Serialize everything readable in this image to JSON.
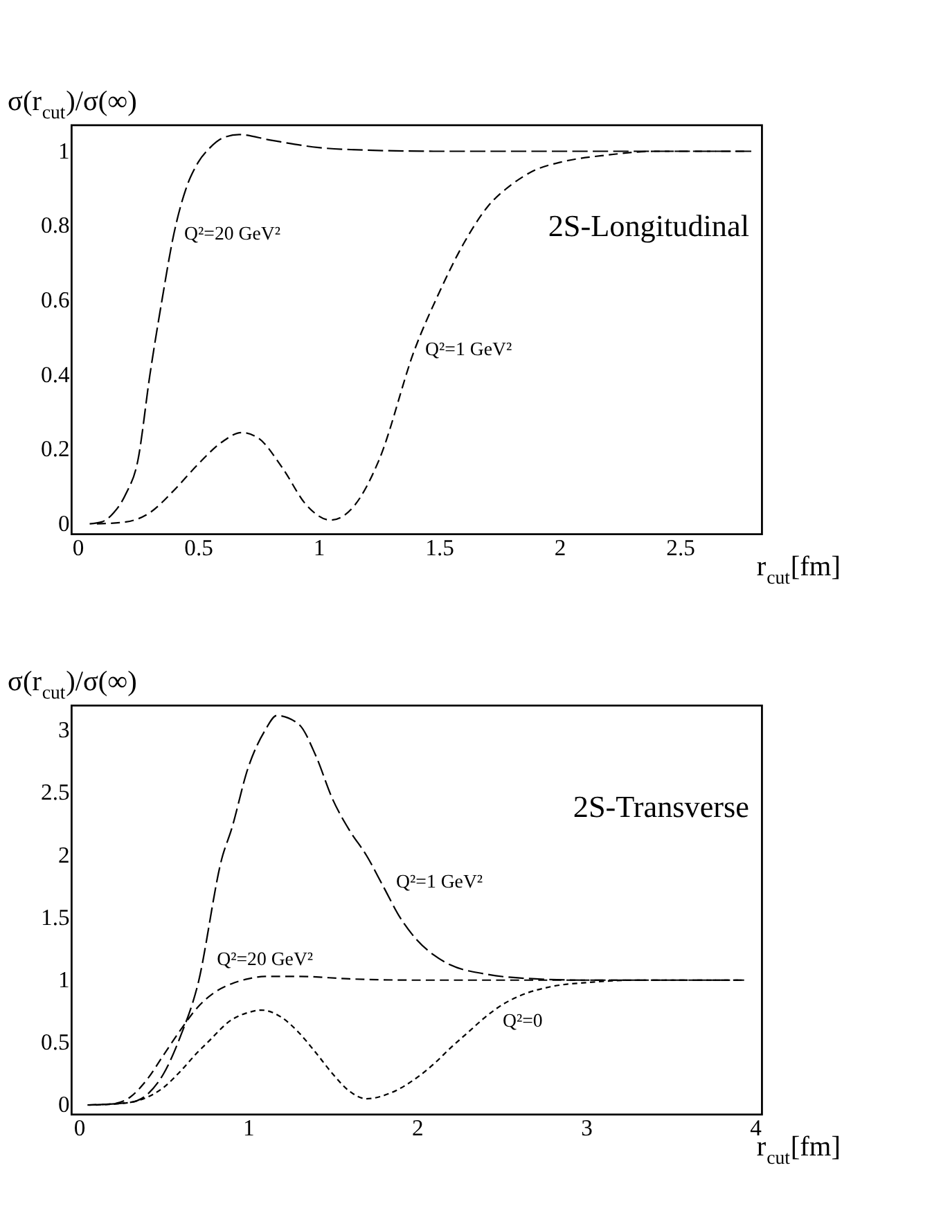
{
  "chart_data": [
    {
      "type": "line",
      "ylabel": "σ(r$_{cut}$)/σ(∞)",
      "xlabel": "r$_{cut}$[fm]",
      "annotations": [
        "2S-Longitudinal"
      ],
      "xlim": [
        -0.025,
        2.84
      ],
      "ylim": [
        -0.028,
        1.07
      ],
      "xticks": [
        0,
        0.5,
        1,
        1.5,
        2,
        2.5
      ],
      "yticks": [
        0,
        0.2,
        0.4,
        0.6,
        0.8,
        1
      ],
      "grid": false,
      "line_style": "dashed",
      "marker": "none",
      "series": [
        {
          "name": "Q²=20 GeV²",
          "color": "#000000",
          "x": [
            0.05,
            0.1,
            0.15,
            0.2,
            0.25,
            0.3,
            0.35,
            0.4,
            0.45,
            0.5,
            0.55,
            0.6,
            0.67,
            0.8,
            1.0,
            1.2,
            1.5,
            2.0,
            2.8
          ],
          "values": [
            0,
            0.005,
            0.03,
            0.08,
            0.17,
            0.4,
            0.6,
            0.78,
            0.9,
            0.97,
            1.01,
            1.035,
            1.045,
            1.03,
            1.01,
            1.003,
            1.0,
            1.0,
            1.0
          ]
        },
        {
          "name": "Q²=1 GeV²",
          "color": "#000000",
          "x": [
            0.08,
            0.2,
            0.3,
            0.4,
            0.5,
            0.6,
            0.68,
            0.75,
            0.85,
            0.95,
            1.05,
            1.15,
            1.25,
            1.4,
            1.5,
            1.6,
            1.7,
            1.8,
            1.9,
            2.0,
            2.2,
            2.4,
            2.78
          ],
          "values": [
            0,
            0.005,
            0.03,
            0.09,
            0.16,
            0.22,
            0.245,
            0.23,
            0.15,
            0.05,
            0.01,
            0.05,
            0.17,
            0.47,
            0.62,
            0.75,
            0.85,
            0.91,
            0.95,
            0.97,
            0.99,
            1.0,
            1.0
          ]
        }
      ]
    },
    {
      "type": "line",
      "ylabel": "σ(r$_{cut}$)/σ(∞)",
      "xlabel": "r$_{cut}$[fm]",
      "annotations": [
        "2S-Transverse"
      ],
      "xlim": [
        -0.044,
        4.04
      ],
      "ylim": [
        -0.077,
        3.2
      ],
      "xticks": [
        0,
        1,
        2,
        3,
        4
      ],
      "yticks": [
        0,
        0.5,
        1,
        1.5,
        2,
        2.5,
        3
      ],
      "grid": false,
      "line_style": "dashed",
      "marker": "none",
      "series": [
        {
          "name": "Q²=1 GeV²",
          "color": "#000000",
          "x": [
            0.06,
            0.3,
            0.4,
            0.5,
            0.6,
            0.7,
            0.85,
            0.9,
            1.0,
            1.1,
            1.17,
            1.3,
            1.4,
            1.5,
            1.6,
            1.7,
            1.8,
            1.9,
            2.0,
            2.1,
            2.2,
            2.4,
            2.7,
            3.0,
            3.92
          ],
          "values": [
            0,
            0.02,
            0.08,
            0.25,
            0.55,
            0.95,
            2.0,
            2.2,
            2.7,
            3.0,
            3.12,
            3.05,
            2.8,
            2.45,
            2.2,
            2.0,
            1.75,
            1.5,
            1.32,
            1.2,
            1.12,
            1.05,
            1.01,
            1.0,
            1.0
          ]
        },
        {
          "name": "Q²=20 GeV²",
          "color": "#000000",
          "x": [
            0.05,
            0.2,
            0.3,
            0.4,
            0.5,
            0.6,
            0.7,
            0.8,
            0.9,
            1.0,
            1.1,
            1.3,
            1.6,
            2.0,
            3.95
          ],
          "values": [
            0,
            0.01,
            0.06,
            0.2,
            0.4,
            0.6,
            0.78,
            0.9,
            0.97,
            1.01,
            1.03,
            1.03,
            1.01,
            1.0,
            1.0
          ]
        },
        {
          "name": "Q²=0",
          "color": "#000000",
          "x": [
            0.1,
            0.3,
            0.4,
            0.5,
            0.6,
            0.7,
            0.76,
            0.9,
            1.0,
            1.08,
            1.2,
            1.3,
            1.4,
            1.5,
            1.6,
            1.7,
            1.85,
            2.0,
            2.1,
            2.2,
            2.3,
            2.4,
            2.5,
            2.6,
            2.8,
            3.0,
            3.3,
            3.9
          ],
          "values": [
            0,
            0.02,
            0.06,
            0.14,
            0.27,
            0.42,
            0.5,
            0.68,
            0.74,
            0.76,
            0.7,
            0.58,
            0.42,
            0.25,
            0.11,
            0.05,
            0.1,
            0.22,
            0.33,
            0.46,
            0.58,
            0.7,
            0.8,
            0.87,
            0.95,
            0.98,
            1.0,
            1.0
          ]
        }
      ]
    }
  ]
}
